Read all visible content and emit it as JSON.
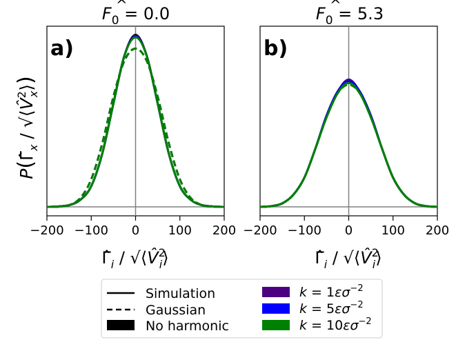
{
  "chart_data": [
    {
      "type": "line",
      "panel_label": "a)",
      "title": "F̂0 = 0.0",
      "title_base": "F",
      "title_sub": "0",
      "title_value": " = 0.0",
      "xlabel": "Γ̂i / √⟨V̂i²⟩",
      "ylabel": "P(Γ̂x / √⟨V̂x²⟩)",
      "xlim": [
        -200,
        200
      ],
      "xticks": [
        "−200",
        "−100",
        "0",
        "100",
        "200"
      ],
      "ylim": [
        0,
        1.05
      ],
      "vline_x": 0,
      "hline_y": 0,
      "grid": false,
      "x": [
        -200,
        -175,
        -150,
        -125,
        -100,
        -75,
        -50,
        -25,
        0,
        25,
        50,
        75,
        100,
        125,
        150,
        175,
        200
      ],
      "series": [
        {
          "name": "Simulation, No harmonic",
          "style": "solid",
          "color": "#000000",
          "values": [
            0.0,
            0.002,
            0.01,
            0.04,
            0.12,
            0.31,
            0.6,
            0.88,
            1.0,
            0.88,
            0.6,
            0.31,
            0.12,
            0.04,
            0.01,
            0.002,
            0.0
          ]
        },
        {
          "name": "Simulation, k=1",
          "style": "solid",
          "color": "#4b0082",
          "values": [
            0.0,
            0.002,
            0.01,
            0.04,
            0.12,
            0.31,
            0.6,
            0.88,
            0.995,
            0.88,
            0.6,
            0.31,
            0.12,
            0.04,
            0.01,
            0.002,
            0.0
          ]
        },
        {
          "name": "Simulation, k=5",
          "style": "solid",
          "color": "#0000ff",
          "values": [
            0.0,
            0.002,
            0.01,
            0.04,
            0.12,
            0.31,
            0.6,
            0.88,
            0.99,
            0.88,
            0.6,
            0.31,
            0.12,
            0.04,
            0.01,
            0.002,
            0.0
          ]
        },
        {
          "name": "Simulation, k=10",
          "style": "solid",
          "color": "#008000",
          "values": [
            0.0,
            0.002,
            0.01,
            0.04,
            0.12,
            0.31,
            0.6,
            0.88,
            0.985,
            0.88,
            0.6,
            0.31,
            0.12,
            0.04,
            0.01,
            0.002,
            0.0
          ]
        },
        {
          "name": "Gaussian, No harmonic",
          "style": "dashed",
          "color": "#000000",
          "values": [
            0.0,
            0.001,
            0.01,
            0.05,
            0.16,
            0.37,
            0.64,
            0.85,
            0.92,
            0.85,
            0.64,
            0.37,
            0.16,
            0.05,
            0.01,
            0.001,
            0.0
          ]
        },
        {
          "name": "Gaussian, k=10",
          "style": "dashed",
          "color": "#008000",
          "values": [
            0.0,
            0.001,
            0.01,
            0.05,
            0.16,
            0.37,
            0.64,
            0.85,
            0.92,
            0.85,
            0.64,
            0.37,
            0.16,
            0.05,
            0.01,
            0.001,
            0.0
          ]
        }
      ]
    },
    {
      "type": "line",
      "panel_label": "b)",
      "title": "F̂0 = 5.3",
      "title_base": "F",
      "title_sub": "0",
      "title_value": " = 5.3",
      "xlabel": "Γ̂i / √⟨V̂i²⟩",
      "xlim": [
        -200,
        200
      ],
      "xticks": [
        "−200",
        "−100",
        "0",
        "100",
        "200"
      ],
      "ylim": [
        0,
        1.05
      ],
      "vline_x": 0,
      "hline_y": 0,
      "grid": false,
      "x": [
        -200,
        -175,
        -150,
        -125,
        -100,
        -75,
        -50,
        -25,
        0,
        25,
        50,
        75,
        100,
        125,
        150,
        175,
        200
      ],
      "series": [
        {
          "name": "Simulation, No harmonic",
          "style": "solid",
          "color": "#000000",
          "values": [
            0.0,
            0.004,
            0.02,
            0.07,
            0.17,
            0.34,
            0.53,
            0.67,
            0.73,
            0.67,
            0.53,
            0.34,
            0.17,
            0.07,
            0.02,
            0.004,
            0.0
          ]
        },
        {
          "name": "Simulation, k=1",
          "style": "solid",
          "color": "#4b0082",
          "values": [
            0.0,
            0.004,
            0.02,
            0.07,
            0.17,
            0.34,
            0.53,
            0.67,
            0.74,
            0.67,
            0.53,
            0.34,
            0.17,
            0.07,
            0.02,
            0.004,
            0.0
          ]
        },
        {
          "name": "Simulation, k=5",
          "style": "solid",
          "color": "#0000ff",
          "values": [
            0.0,
            0.004,
            0.02,
            0.07,
            0.17,
            0.34,
            0.53,
            0.67,
            0.73,
            0.67,
            0.53,
            0.34,
            0.17,
            0.07,
            0.02,
            0.004,
            0.0
          ]
        },
        {
          "name": "Simulation, k=10",
          "style": "solid",
          "color": "#008000",
          "values": [
            0.0,
            0.004,
            0.02,
            0.07,
            0.17,
            0.34,
            0.52,
            0.66,
            0.72,
            0.66,
            0.52,
            0.34,
            0.17,
            0.07,
            0.02,
            0.004,
            0.0
          ]
        },
        {
          "name": "Gaussian, k=10",
          "style": "dashed",
          "color": "#008000",
          "values": [
            0.0,
            0.004,
            0.02,
            0.07,
            0.17,
            0.34,
            0.52,
            0.66,
            0.71,
            0.66,
            0.52,
            0.34,
            0.17,
            0.07,
            0.02,
            0.004,
            0.0
          ]
        }
      ]
    }
  ],
  "legend": {
    "placement": "bottom-center",
    "entries": [
      {
        "label": "Simulation",
        "kind": "solid",
        "color": "#000000"
      },
      {
        "label": "Gaussian",
        "kind": "dashed",
        "color": "#000000"
      },
      {
        "label": "No harmonic",
        "kind": "patch",
        "color": "#000000"
      },
      {
        "label": "k = 1εσ⁻²",
        "kind": "patch",
        "color": "#4b0082",
        "k_value": "1"
      },
      {
        "label": "k = 5εσ⁻²",
        "kind": "patch",
        "color": "#0000ff",
        "k_value": "5"
      },
      {
        "label": "k = 10εσ⁻²",
        "kind": "patch",
        "color": "#008000",
        "k_value": "10"
      }
    ]
  }
}
